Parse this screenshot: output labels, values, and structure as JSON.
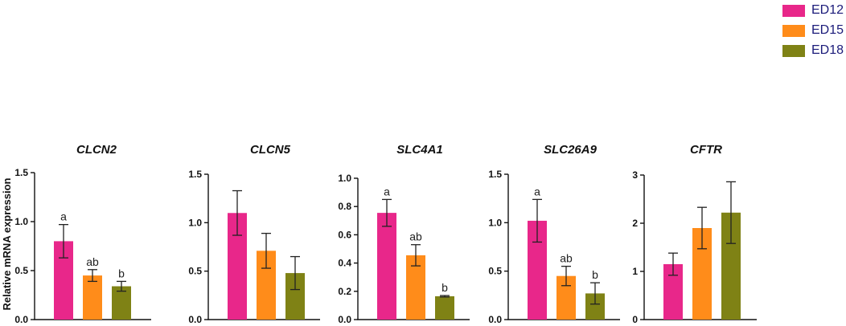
{
  "legend": {
    "position": "top-right",
    "items": [
      {
        "label": "ED12",
        "color": "#e8278a"
      },
      {
        "label": "ED15",
        "color": "#ff8c1a"
      },
      {
        "label": "ED18",
        "color": "#7f8215"
      }
    ]
  },
  "y_axis_label": "Relative mRNA expression",
  "chart_data": [
    {
      "type": "bar",
      "title": "CLCN2",
      "categories": [
        "ED12",
        "ED15",
        "ED18"
      ],
      "values": [
        0.8,
        0.45,
        0.34
      ],
      "errors": [
        0.17,
        0.06,
        0.05
      ],
      "letters": [
        "a",
        "ab",
        "b"
      ],
      "ylim": [
        0,
        1.5
      ],
      "yticks": [
        0,
        0.5,
        1.0,
        1.5
      ],
      "ytick_labels": [
        "0.0",
        "0.5",
        "1.0",
        "1.5"
      ]
    },
    {
      "type": "bar",
      "title": "CLCN5",
      "categories": [
        "ED12",
        "ED15",
        "ED18"
      ],
      "values": [
        1.1,
        0.71,
        0.48
      ],
      "errors": [
        0.23,
        0.18,
        0.17
      ],
      "letters": [
        "",
        "",
        ""
      ],
      "ylim": [
        0,
        1.5
      ],
      "yticks": [
        0,
        0.5,
        1.0,
        1.5
      ],
      "ytick_labels": [
        "0.0",
        "0.5",
        "1.0",
        "1.5"
      ]
    },
    {
      "type": "bar",
      "title": "SLC4A1",
      "categories": [
        "ED12",
        "ED15",
        "ED18"
      ],
      "values": [
        0.755,
        0.455,
        0.165
      ],
      "errors": [
        0.095,
        0.075,
        0.005
      ],
      "letters": [
        "a",
        "ab",
        "b"
      ],
      "ylim": [
        0,
        1.0
      ],
      "yticks": [
        0,
        0.2,
        0.4,
        0.6,
        0.8,
        1.0
      ],
      "ytick_labels": [
        "0.0",
        "0.2",
        "0.4",
        "0.6",
        "0.8",
        "1.0"
      ]
    },
    {
      "type": "bar",
      "title": "SLC26A9",
      "categories": [
        "ED12",
        "ED15",
        "ED18"
      ],
      "values": [
        1.02,
        0.45,
        0.27
      ],
      "errors": [
        0.22,
        0.1,
        0.11
      ],
      "letters": [
        "a",
        "ab",
        "b"
      ],
      "ylim": [
        0,
        1.5
      ],
      "yticks": [
        0,
        0.5,
        1.0,
        1.5
      ],
      "ytick_labels": [
        "0.0",
        "0.5",
        "1.0",
        "1.5"
      ]
    },
    {
      "type": "bar",
      "title": "CFTR",
      "categories": [
        "ED12",
        "ED15",
        "ED18"
      ],
      "values": [
        1.15,
        1.9,
        2.22
      ],
      "errors": [
        0.23,
        0.43,
        0.64
      ],
      "letters": [
        "",
        "",
        ""
      ],
      "ylim": [
        0,
        3
      ],
      "yticks": [
        0,
        1,
        2,
        3
      ],
      "ytick_labels": [
        "0",
        "1",
        "2",
        "3"
      ]
    }
  ]
}
